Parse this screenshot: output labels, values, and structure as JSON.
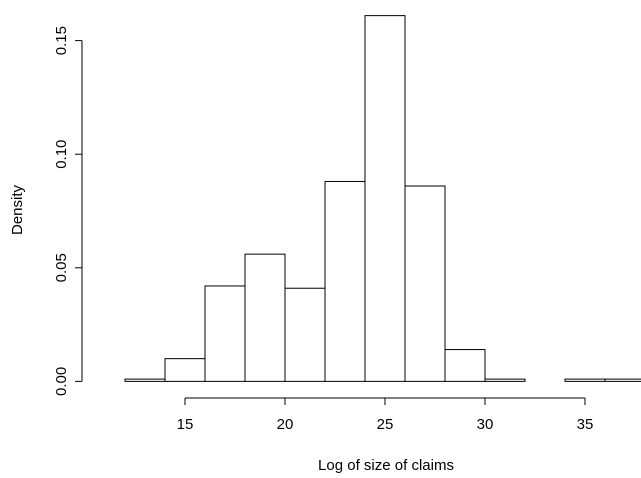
{
  "chart_data": {
    "type": "histogram",
    "x_label": "Log of size of claims",
    "y_label": "Density",
    "bins": [
      12,
      14,
      16,
      18,
      20,
      22,
      24,
      26,
      28,
      30,
      32,
      34,
      36,
      38
    ],
    "values": [
      0.001,
      0.01,
      0.042,
      0.056,
      0.041,
      0.088,
      0.161,
      0.086,
      0.014,
      0.001,
      0,
      0.001,
      0.001
    ],
    "color": "#ffffff",
    "edge_color": "#000000",
    "xlim": [
      11,
      39
    ],
    "ylim": [
      -0.006,
      0.167
    ],
    "xticks": [
      15,
      20,
      25,
      30,
      35
    ],
    "yticks": [
      {
        "value": 0,
        "label": "0.00"
      },
      {
        "value": 0.05,
        "label": "0.05"
      },
      {
        "value": 0.1,
        "label": "0.10"
      },
      {
        "value": 0.15,
        "label": "0.15"
      }
    ]
  }
}
